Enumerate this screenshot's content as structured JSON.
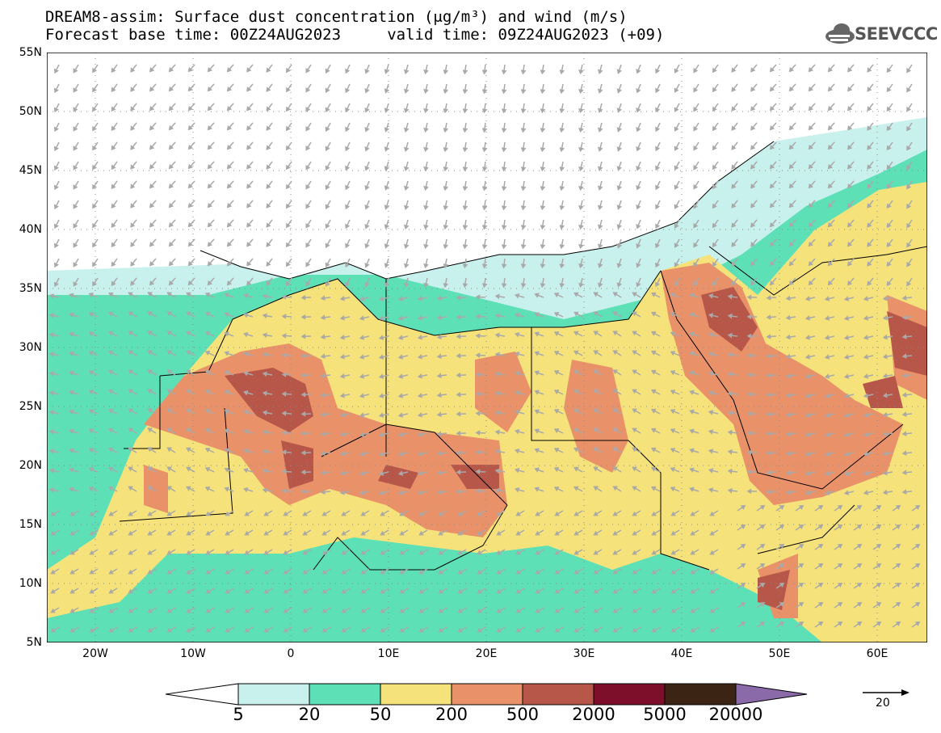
{
  "header": {
    "title_line1": "DREAM8-assim: Surface dust concentration (μg/m³) and wind (m/s)",
    "title_line2": "Forecast base time: 00Z24AUG2023     valid time: 09Z24AUG2023 (+09)",
    "logo_text": "SEEVCCC"
  },
  "map": {
    "lon_range": [
      -25,
      65
    ],
    "lat_range": [
      5,
      55
    ],
    "lat_labels": [
      "55N",
      "50N",
      "45N",
      "40N",
      "35N",
      "30N",
      "25N",
      "20N",
      "15N",
      "10N",
      "5N"
    ],
    "lon_labels": [
      "20W",
      "10W",
      "0",
      "10E",
      "20E",
      "30E",
      "40E",
      "50E",
      "60E"
    ],
    "colors": {
      "c5": "#c8f0ec",
      "c20": "#5ee0b6",
      "c50": "#f6e27a",
      "c200": "#e9926a",
      "c500": "#b7574a",
      "c2000": "#7d0f2a",
      "c5000": "#3b2414",
      "c20000": "#8a6aa8",
      "wind": "#a9a9a9",
      "border": "#000000"
    }
  },
  "colorbar": {
    "labels": [
      "5",
      "20",
      "50",
      "200",
      "500",
      "2000",
      "5000",
      "20000"
    ],
    "colors": [
      "#c8f0ec",
      "#5ee0b6",
      "#f6e27a",
      "#e9926a",
      "#b7574a",
      "#7d0f2a",
      "#3b2414"
    ]
  },
  "wind_reference": {
    "label": "20"
  }
}
